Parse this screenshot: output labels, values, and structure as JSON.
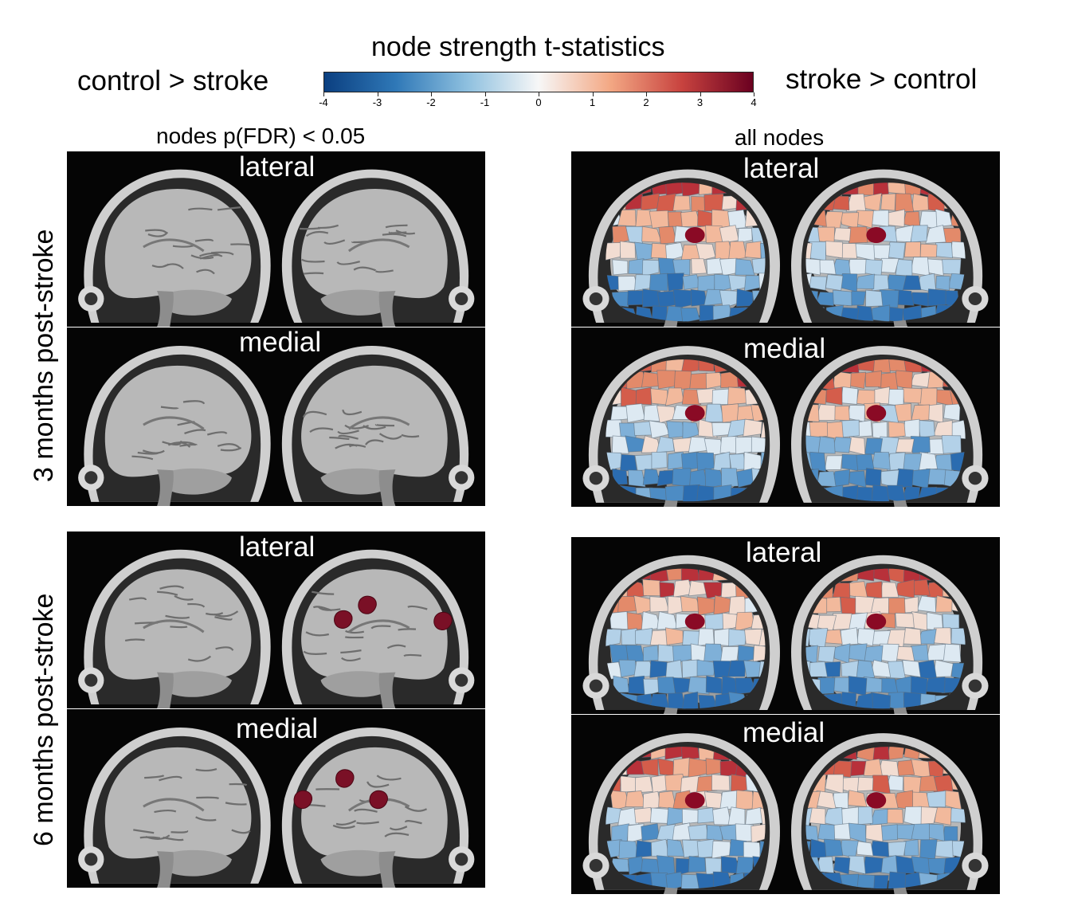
{
  "colorbar": {
    "title": "node strength t-statistics",
    "left_label": "control > stroke",
    "right_label": "stroke > control",
    "ticks": [
      "-4",
      "-3",
      "-2",
      "-1",
      "0",
      "1",
      "2",
      "3",
      "4"
    ],
    "colors": [
      "#0b3f80",
      "#2f78b7",
      "#8ec0df",
      "#f7f7f7",
      "#f3a884",
      "#c8433f",
      "#6a0020"
    ]
  },
  "columns": {
    "left_title": "nodes p(FDR) < 0.05",
    "right_title": "all nodes"
  },
  "rows": {
    "top_label": "3 months post-stroke",
    "bottom_label": "6 months post-stroke"
  },
  "views": {
    "lateral": "lateral",
    "medial": "medial"
  },
  "node_color": "#7a1026"
}
